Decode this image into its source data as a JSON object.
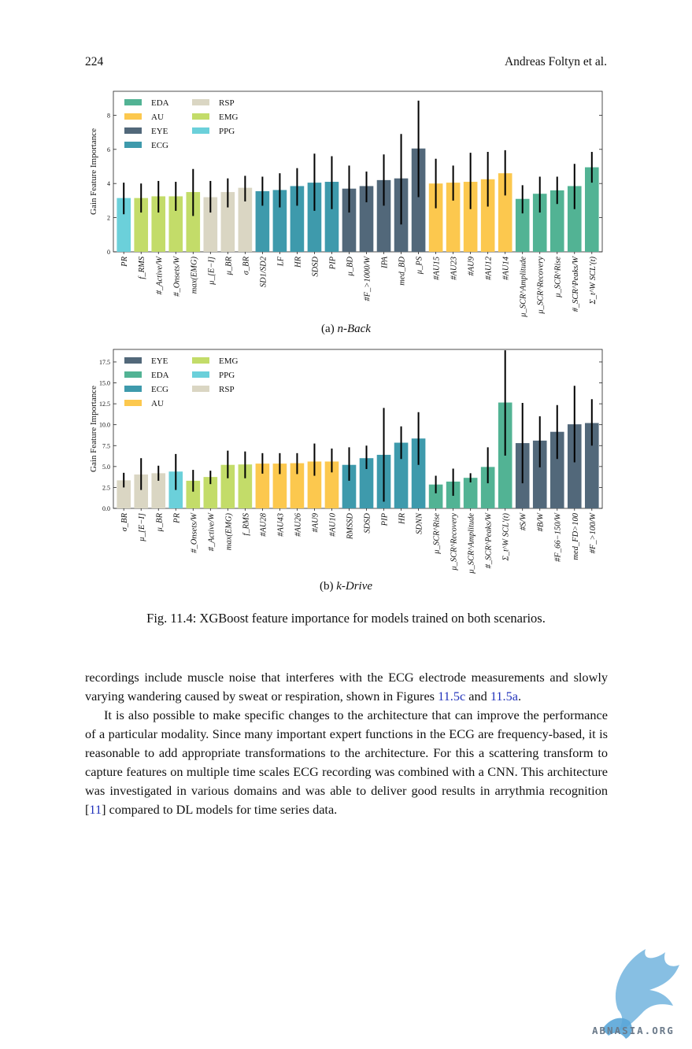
{
  "page": {
    "number": "224",
    "author": "Andreas Foltyn et al."
  },
  "colors": {
    "EDA": "#52b394",
    "AU": "#fcc84e",
    "EYE": "#52687a",
    "ECG": "#3e9aac",
    "RSP": "#dad6c3",
    "EMG": "#c3dc69",
    "PPG": "#6bd0da"
  },
  "charts": [
    {
      "subcaption_label": "(a)",
      "subcaption_name": "n-Back",
      "chart_data": {
        "type": "bar",
        "ylabel": "Gain Feature Importance",
        "ylim": [
          0,
          9.4
        ],
        "yticks": [
          "0",
          "2",
          "4",
          "6",
          "8"
        ],
        "legend": [
          "EDA",
          "AU",
          "EYE",
          "ECG",
          "RSP",
          "EMG",
          "PPG"
        ],
        "legend_placement": "top-left",
        "categories": [
          "PR",
          "f_RMS",
          "#_Active/W",
          "#_Onsets/W",
          "max(EMG)",
          "μ_[E−I]",
          "μ_BR",
          "σ_BR",
          "SD1/SD2",
          "LF",
          "HR",
          "SDSD",
          "PIP",
          "μ_BD",
          "#F_>1000/W",
          "IPA",
          "med_BD",
          "μ_PS",
          "#AU15",
          "#AU23",
          "#AU9",
          "#AU12",
          "#AU14",
          "μ_SCR^Amplitude",
          "μ_SCR^Recovery",
          "μ_SCR^Rise",
          "#_SCR^Peaks/W",
          "Σ_t^W SCL′(t)"
        ],
        "groups": [
          "PPG",
          "EMG",
          "EMG",
          "EMG",
          "EMG",
          "RSP",
          "RSP",
          "RSP",
          "ECG",
          "ECG",
          "ECG",
          "ECG",
          "ECG",
          "EYE",
          "EYE",
          "EYE",
          "EYE",
          "EYE",
          "AU",
          "AU",
          "AU",
          "AU",
          "AU",
          "EDA",
          "EDA",
          "EDA",
          "EDA",
          "EDA"
        ],
        "values": [
          3.15,
          3.15,
          3.25,
          3.25,
          3.5,
          3.2,
          3.5,
          3.75,
          3.55,
          3.62,
          3.85,
          4.05,
          4.1,
          3.7,
          3.85,
          4.2,
          4.3,
          6.05,
          4.0,
          4.05,
          4.1,
          4.25,
          4.6,
          3.1,
          3.4,
          3.6,
          3.85,
          4.95
        ],
        "err_low": [
          2.2,
          2.3,
          2.3,
          2.4,
          2.1,
          2.3,
          2.6,
          2.95,
          2.7,
          2.6,
          2.7,
          2.4,
          2.5,
          2.3,
          2.9,
          2.7,
          1.6,
          3.2,
          2.55,
          3.0,
          2.5,
          2.65,
          3.3,
          2.25,
          2.3,
          2.8,
          2.5,
          4.05
        ],
        "err_high": [
          4.05,
          4.0,
          4.15,
          4.1,
          4.85,
          4.15,
          4.3,
          4.45,
          4.4,
          4.6,
          4.9,
          5.75,
          5.6,
          5.05,
          4.7,
          5.7,
          6.9,
          8.85,
          5.45,
          5.05,
          5.8,
          5.85,
          5.95,
          3.9,
          4.4,
          4.4,
          5.15,
          5.85
        ]
      }
    },
    {
      "subcaption_label": "(b)",
      "subcaption_name": "k-Drive",
      "chart_data": {
        "type": "bar",
        "ylabel": "Gain Feature Importance",
        "ylim": [
          0,
          19.0
        ],
        "yticks": [
          "0.0",
          "2.5",
          "5.0",
          "7.5",
          "10.0",
          "12.5",
          "15.0",
          "17.5"
        ],
        "legend": [
          "EYE",
          "EDA",
          "ECG",
          "AU",
          "EMG",
          "PPG",
          "RSP"
        ],
        "legend_placement": "top-left",
        "categories": [
          "σ_BR",
          "μ_[E−I]",
          "μ_BR",
          "PR",
          "#_Onsets/W",
          "#_Active/W",
          "max(EMG)",
          "f_RMS",
          "#AU28",
          "#AU43",
          "#AU26",
          "#AU9",
          "#AU10",
          "RMSSD",
          "SDSD",
          "PIP",
          "HR",
          "SDNN",
          "μ_SCR^Rise",
          "μ_SCR^Recovery",
          "μ_SCR^Amplitude",
          "#_SCR^Peaks/W",
          "Σ_t^W SCL′(t)",
          "#S/W",
          "#B/W",
          "#F_66−150/W",
          "med_FD>100",
          "#F_>100/W"
        ],
        "groups": [
          "RSP",
          "RSP",
          "RSP",
          "PPG",
          "EMG",
          "EMG",
          "EMG",
          "EMG",
          "AU",
          "AU",
          "AU",
          "AU",
          "AU",
          "ECG",
          "ECG",
          "ECG",
          "ECG",
          "ECG",
          "EDA",
          "EDA",
          "EDA",
          "EDA",
          "EDA",
          "EYE",
          "EYE",
          "EYE",
          "EYE",
          "EYE"
        ],
        "values": [
          3.35,
          4.05,
          4.2,
          4.4,
          3.3,
          3.75,
          5.2,
          5.25,
          5.35,
          5.35,
          5.4,
          5.6,
          5.6,
          5.2,
          6.0,
          6.4,
          7.85,
          8.35,
          2.85,
          3.2,
          3.65,
          4.95,
          12.65,
          7.8,
          8.1,
          9.15,
          10.05,
          10.2
        ],
        "err_low": [
          2.5,
          2.2,
          3.3,
          2.2,
          2.0,
          2.9,
          3.6,
          3.6,
          4.15,
          4.1,
          4.1,
          3.9,
          4.3,
          3.3,
          4.7,
          0.8,
          5.9,
          5.2,
          1.8,
          1.5,
          3.1,
          3.0,
          6.3,
          3.0,
          4.9,
          5.9,
          5.5,
          7.5
        ],
        "err_high": [
          4.25,
          6.0,
          5.1,
          6.5,
          4.6,
          4.5,
          6.9,
          6.8,
          6.6,
          6.6,
          6.6,
          7.75,
          7.15,
          7.3,
          7.5,
          12.0,
          9.8,
          11.5,
          3.9,
          4.75,
          4.2,
          7.3,
          18.9,
          12.6,
          11.0,
          12.35,
          14.65,
          13.05
        ]
      }
    }
  ],
  "figure_caption": "Fig. 11.4: XGBoost feature importance for models trained on both scenarios.",
  "body": {
    "p1_a": "recordings include muscle noise that interferes with the ECG electrode measurements and slowly varying wandering caused by sweat or respiration, shown in Figures ",
    "p1_ref1": "11.5c",
    "p1_b": " and ",
    "p1_ref2": "11.5a",
    "p1_c": ".",
    "p2_a": "It is also possible to make specific changes to the architecture that can improve the performance of a particular modality. Since many important expert functions in the ECG are frequency-based, it is reasonable to add appropriate transformations to the architecture. For this a scattering transform to capture features on multiple time scales ECG recording was combined with a CNN. This architecture was investigated in various domains and was able to deliver good results in arrythmia recognition [",
    "p2_ref": "11",
    "p2_b": "] compared to DL models for time series data."
  },
  "watermark": {
    "text": "ABNASIA.ORG",
    "color": "#7ab8e0"
  }
}
